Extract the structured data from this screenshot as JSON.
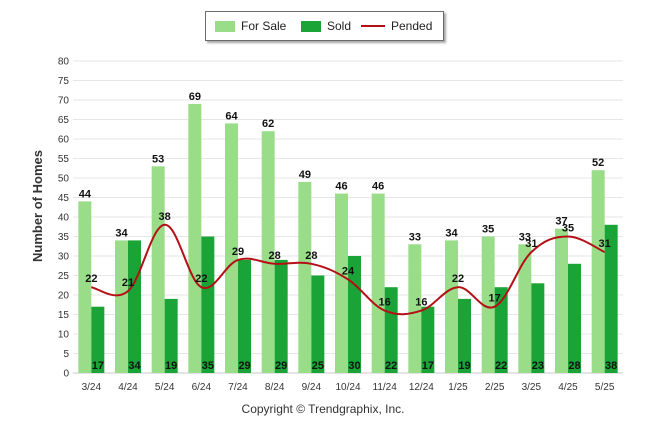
{
  "chart_data": {
    "type": "bar",
    "title": "",
    "xlabel": "",
    "ylabel": "Number of Homes",
    "ylim": [
      0,
      80
    ],
    "yticks": [
      0,
      5,
      10,
      15,
      20,
      25,
      30,
      35,
      40,
      45,
      50,
      55,
      60,
      65,
      70,
      75,
      80
    ],
    "grid": true,
    "legend_position": "top-center",
    "categories": [
      "3/24",
      "4/24",
      "5/24",
      "6/24",
      "7/24",
      "8/24",
      "9/24",
      "10/24",
      "11/24",
      "12/24",
      "1/25",
      "2/25",
      "3/25",
      "4/25",
      "5/25"
    ],
    "series": [
      {
        "name": "For Sale",
        "kind": "bar",
        "color": "#99dd88",
        "values": [
          44,
          34,
          53,
          69,
          64,
          62,
          49,
          46,
          46,
          33,
          34,
          35,
          33,
          37,
          52
        ]
      },
      {
        "name": "Sold",
        "kind": "bar",
        "color": "#1aa336",
        "values": [
          17,
          34,
          19,
          35,
          29,
          29,
          25,
          30,
          22,
          17,
          19,
          22,
          23,
          28,
          38
        ]
      },
      {
        "name": "Pended",
        "kind": "line",
        "color": "#b50f16",
        "values": [
          22,
          21,
          38,
          22,
          29,
          28,
          28,
          24,
          16,
          16,
          22,
          17,
          31,
          35,
          31
        ]
      }
    ]
  },
  "legend": {
    "for_sale": "For Sale",
    "sold": "Sold",
    "pended": "Pended"
  },
  "footer": {
    "copyright": "Copyright © Trendgraphix, Inc."
  }
}
